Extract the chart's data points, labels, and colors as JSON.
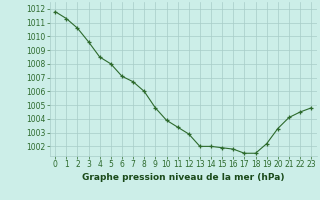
{
  "x": [
    0,
    1,
    2,
    3,
    4,
    5,
    6,
    7,
    8,
    9,
    10,
    11,
    12,
    13,
    14,
    15,
    16,
    17,
    18,
    19,
    20,
    21,
    22,
    23
  ],
  "y": [
    1011.8,
    1011.3,
    1010.6,
    1009.6,
    1008.5,
    1008.0,
    1007.1,
    1006.7,
    1006.0,
    1004.8,
    1003.9,
    1003.4,
    1002.9,
    1002.0,
    1002.0,
    1001.9,
    1001.8,
    1001.5,
    1001.5,
    1002.2,
    1003.3,
    1004.1,
    1004.5,
    1004.8
  ],
  "ylim": [
    1001.3,
    1012.5
  ],
  "yticks": [
    1002,
    1003,
    1004,
    1005,
    1006,
    1007,
    1008,
    1009,
    1010,
    1011,
    1012
  ],
  "xlim": [
    -0.5,
    23.5
  ],
  "xticks": [
    0,
    1,
    2,
    3,
    4,
    5,
    6,
    7,
    8,
    9,
    10,
    11,
    12,
    13,
    14,
    15,
    16,
    17,
    18,
    19,
    20,
    21,
    22,
    23
  ],
  "line_color": "#2d6a2d",
  "marker_color": "#2d6a2d",
  "bg_color": "#cceee8",
  "grid_color": "#a8ccc8",
  "xlabel": "Graphe pression niveau de la mer (hPa)",
  "xlabel_color": "#1a4a1a",
  "tick_color": "#2d6a2d",
  "axis_label_fontsize": 6.5,
  "tick_fontsize": 5.5
}
